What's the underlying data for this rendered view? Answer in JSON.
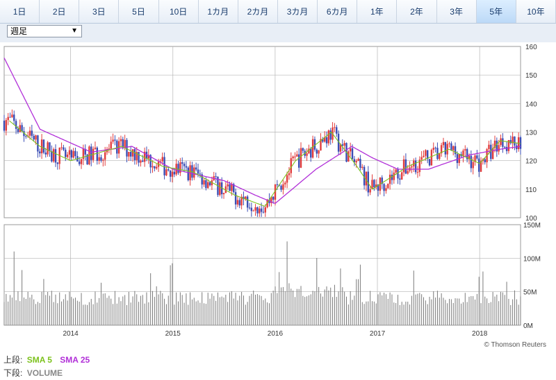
{
  "tabs": [
    {
      "label": "1日"
    },
    {
      "label": "2日"
    },
    {
      "label": "3日"
    },
    {
      "label": "5日"
    },
    {
      "label": "10日"
    },
    {
      "label": "1カ月"
    },
    {
      "label": "2カ月"
    },
    {
      "label": "3カ月"
    },
    {
      "label": "6カ月"
    },
    {
      "label": "1年"
    },
    {
      "label": "2年"
    },
    {
      "label": "3年"
    },
    {
      "label": "5年",
      "active": true
    },
    {
      "label": "10年"
    }
  ],
  "period_select": {
    "value": "週足"
  },
  "colors": {
    "up": "#e23c3c",
    "down": "#3a4db5",
    "sma5": "#7dc21e",
    "sma25": "#b12fd8",
    "volume": "#7a7a7a",
    "grid": "#b5b5b5"
  },
  "watermark": "© Thomson Reuters",
  "legend": {
    "upper_prefix": "上段:",
    "sma5": "SMA 5",
    "sma25": "SMA 25",
    "lower_prefix": "下段:",
    "volume": "VOLUME"
  },
  "chart_data": [
    {
      "type": "candlestick",
      "title": "",
      "x_range": [
        "2013-05",
        "2018-05"
      ],
      "x_ticks": [
        "2014",
        "2015",
        "2016",
        "2017",
        "2018"
      ],
      "y_ticks": [
        100,
        110,
        120,
        130,
        140,
        150,
        160
      ],
      "ylim": [
        100,
        160
      ],
      "series": [
        {
          "name": "SMA 5",
          "approx_closing_path": [
            [
              2013.4,
              134
            ],
            [
              2013.7,
              125
            ],
            [
              2014.0,
              120
            ],
            [
              2014.5,
              125
            ],
            [
              2014.9,
              118
            ],
            [
              2015.2,
              116
            ],
            [
              2015.6,
              108
            ],
            [
              2015.9,
              104
            ],
            [
              2016.2,
              120
            ],
            [
              2016.55,
              130
            ],
            [
              2016.8,
              118
            ],
            [
              2016.95,
              110
            ],
            [
              2017.3,
              118
            ],
            [
              2017.7,
              124
            ],
            [
              2018.0,
              119
            ],
            [
              2018.2,
              127
            ],
            [
              2018.4,
              126
            ]
          ]
        },
        {
          "name": "SMA 25",
          "approx_path": [
            [
              2013.35,
              156
            ],
            [
              2013.7,
              131
            ],
            [
              2014.2,
              123
            ],
            [
              2014.6,
              125
            ],
            [
              2015.0,
              117
            ],
            [
              2015.5,
              113
            ],
            [
              2015.8,
              108
            ],
            [
              2016.0,
              105
            ],
            [
              2016.4,
              117
            ],
            [
              2016.75,
              125
            ],
            [
              2016.95,
              121
            ],
            [
              2017.2,
              117
            ],
            [
              2017.5,
              117
            ],
            [
              2017.9,
              122
            ],
            [
              2018.2,
              124
            ],
            [
              2018.4,
              125
            ]
          ]
        }
      ],
      "candles_ohlc": []
    },
    {
      "type": "bar",
      "title": "",
      "name": "VOLUME",
      "y_ticks": [
        "0M",
        "50M",
        "100M",
        "150M"
      ],
      "ylim": [
        0,
        150
      ],
      "unit": "M",
      "values": []
    }
  ]
}
